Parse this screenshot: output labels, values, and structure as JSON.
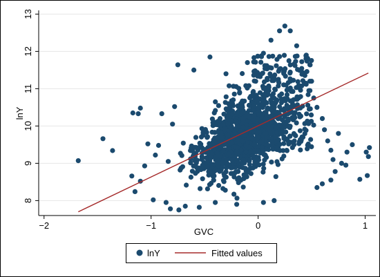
{
  "chart_data": {
    "type": "scatter",
    "xlabel": "GVC",
    "ylabel": "lnY",
    "xlim": [
      -2.05,
      1.1
    ],
    "ylim": [
      7.6,
      13.1
    ],
    "xticks": [
      -2,
      -1,
      0,
      1
    ],
    "xtick_labels": [
      "−2",
      "−1",
      "0",
      "1"
    ],
    "yticks": [
      8,
      9,
      10,
      11,
      12,
      13
    ],
    "ytick_labels": [
      "8",
      "9",
      "10",
      "11",
      "12",
      "13"
    ],
    "grid": true,
    "legend_position": "bottom",
    "colors": {
      "marker": "#1b4a6e",
      "fit_line": "#a52a2a"
    },
    "series": [
      {
        "name": "lnY",
        "kind": "scatter",
        "note": "dense cloud of observations concentrated between GVC -0.9 and 0.5",
        "points": [
          {
            "x": -1.68,
            "y": 9.07
          },
          {
            "x": -1.45,
            "y": 9.66
          },
          {
            "x": -1.36,
            "y": 9.34
          },
          {
            "x": -1.17,
            "y": 10.35
          },
          {
            "x": -1.12,
            "y": 10.33
          },
          {
            "x": -1.1,
            "y": 10.48
          },
          {
            "x": -1.18,
            "y": 8.66
          },
          {
            "x": -1.15,
            "y": 8.24
          },
          {
            "x": -1.1,
            "y": 8.52
          },
          {
            "x": -1.06,
            "y": 8.93
          },
          {
            "x": -1.03,
            "y": 9.52
          },
          {
            "x": -0.98,
            "y": 8.02
          },
          {
            "x": -0.96,
            "y": 9.22
          },
          {
            "x": -0.93,
            "y": 9.48
          },
          {
            "x": -0.9,
            "y": 10.33
          },
          {
            "x": -0.86,
            "y": 7.95
          },
          {
            "x": -0.84,
            "y": 9.05
          },
          {
            "x": -0.82,
            "y": 7.78
          },
          {
            "x": -0.8,
            "y": 10.05
          },
          {
            "x": -0.78,
            "y": 10.52
          },
          {
            "x": -0.75,
            "y": 11.64
          },
          {
            "x": -0.74,
            "y": 7.75
          },
          {
            "x": -0.68,
            "y": 7.85
          },
          {
            "x": -0.6,
            "y": 11.5
          },
          {
            "x": -0.45,
            "y": 11.85
          },
          {
            "x": -0.3,
            "y": 11.4
          },
          {
            "x": -0.1,
            "y": 11.7
          },
          {
            "x": 0.05,
            "y": 11.95
          },
          {
            "x": 0.12,
            "y": 12.3
          },
          {
            "x": 0.2,
            "y": 12.55
          },
          {
            "x": 0.25,
            "y": 12.68
          },
          {
            "x": 0.3,
            "y": 12.55
          },
          {
            "x": 0.36,
            "y": 12.15
          },
          {
            "x": 0.45,
            "y": 11.9
          },
          {
            "x": 0.5,
            "y": 11.2
          },
          {
            "x": 0.52,
            "y": 10.75
          },
          {
            "x": 0.55,
            "y": 10.5
          },
          {
            "x": 0.6,
            "y": 10.2
          },
          {
            "x": 0.62,
            "y": 9.9
          },
          {
            "x": 0.65,
            "y": 9.6
          },
          {
            "x": 0.68,
            "y": 9.35
          },
          {
            "x": 0.7,
            "y": 9.1
          },
          {
            "x": 0.72,
            "y": 8.78
          },
          {
            "x": 0.68,
            "y": 8.55
          },
          {
            "x": 0.6,
            "y": 8.45
          },
          {
            "x": 0.55,
            "y": 8.35
          },
          {
            "x": 0.78,
            "y": 9.0
          },
          {
            "x": 0.75,
            "y": 9.8
          },
          {
            "x": 0.82,
            "y": 8.95
          },
          {
            "x": 0.83,
            "y": 9.3
          },
          {
            "x": 0.88,
            "y": 9.5
          },
          {
            "x": 0.95,
            "y": 8.57
          },
          {
            "x": 1.02,
            "y": 8.67
          },
          {
            "x": 1.03,
            "y": 9.18
          },
          {
            "x": 1.04,
            "y": 9.42
          },
          {
            "x": 1.01,
            "y": 9.3
          },
          {
            "x": 0.15,
            "y": 8.0
          },
          {
            "x": 0.05,
            "y": 7.95
          },
          {
            "x": -0.2,
            "y": 7.9
          },
          {
            "x": -0.4,
            "y": 7.95
          },
          {
            "x": -0.55,
            "y": 7.82
          }
        ]
      },
      {
        "name": "Fitted values",
        "kind": "line",
        "x": [
          -1.68,
          1.03
        ],
        "y": [
          7.7,
          11.42
        ]
      }
    ]
  }
}
